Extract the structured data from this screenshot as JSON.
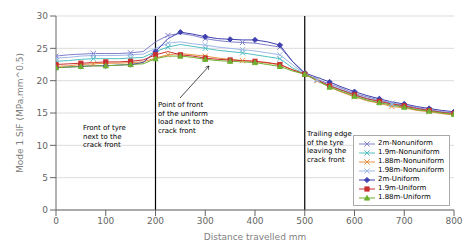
{
  "chart_data": {
    "type": "line",
    "xlabel": "Distance travelled mm",
    "ylabel": "Mode 1 SIF (MPa.mm^0.5)",
    "xlim": [
      0,
      800
    ],
    "ylim": [
      0,
      30
    ],
    "xticks": [
      0,
      100,
      200,
      300,
      400,
      500,
      600,
      700,
      800
    ],
    "yticks": [
      0,
      5,
      10,
      15,
      20,
      25,
      30
    ],
    "grid": true,
    "legend": "lower right",
    "vlines": [
      200,
      500
    ],
    "annotations": [
      "Point of front\nof the uniform\nload next to the\ncrack front",
      "Front of tyre\nnext to the\ncrack front",
      "Trailing edge\nof the tyre\nleaving the\ncrack front"
    ],
    "x": [
      0,
      25,
      50,
      75,
      100,
      125,
      150,
      175,
      200,
      225,
      250,
      275,
      300,
      325,
      350,
      375,
      400,
      425,
      450,
      475,
      500,
      525,
      550,
      575,
      600,
      625,
      650,
      675,
      700,
      725,
      750,
      775,
      800
    ],
    "series": [
      {
        "name": "2m-Nonuniform",
        "color": "#8080cc",
        "marker": "x",
        "values": [
          23.8,
          24.0,
          24.1,
          24.2,
          24.2,
          24.2,
          24.3,
          24.5,
          26.0,
          27.0,
          27.3,
          27.0,
          26.5,
          26.2,
          26.0,
          25.9,
          25.8,
          25.5,
          25.2,
          23.0,
          21.0,
          20.2,
          19.5,
          18.8,
          18.0,
          17.5,
          17.0,
          16.5,
          16.2,
          15.8,
          15.5,
          15.2,
          15.0
        ]
      },
      {
        "name": "1.9m-Nonuniform",
        "color": "#50c0c0",
        "marker": "x",
        "values": [
          23.0,
          23.1,
          23.3,
          23.4,
          23.4,
          23.4,
          23.5,
          23.6,
          24.5,
          25.2,
          25.6,
          25.3,
          25.0,
          24.7,
          24.5,
          24.3,
          24.0,
          23.7,
          23.4,
          22.0,
          21.0,
          20.1,
          19.2,
          18.5,
          17.8,
          17.2,
          16.8,
          16.3,
          16.0,
          15.5,
          15.3,
          15.0,
          14.8
        ]
      },
      {
        "name": "1.88m-Nonuniform",
        "color": "#e89040",
        "marker": "x",
        "values": [
          22.2,
          22.3,
          22.5,
          22.6,
          22.7,
          22.7,
          22.8,
          22.9,
          23.5,
          24.0,
          24.2,
          24.0,
          23.8,
          23.5,
          23.3,
          23.1,
          23.0,
          22.7,
          22.5,
          21.7,
          21.0,
          20.0,
          19.0,
          18.2,
          17.5,
          16.9,
          16.5,
          16.0,
          15.8,
          15.4,
          15.2,
          14.9,
          14.7
        ]
      },
      {
        "name": "1.98m-Nonuniform",
        "color": "#a0b8e8",
        "marker": "x",
        "values": [
          23.5,
          23.6,
          23.8,
          23.9,
          23.9,
          23.9,
          24.0,
          24.1,
          25.0,
          25.8,
          26.0,
          25.7,
          25.5,
          25.2,
          25.0,
          24.8,
          24.6,
          24.3,
          24.0,
          22.5,
          21.0,
          20.1,
          19.3,
          18.6,
          17.9,
          17.3,
          16.9,
          16.4,
          16.1,
          15.7,
          15.4,
          15.1,
          14.9
        ]
      },
      {
        "name": "2m-Uniform",
        "color": "#4040b0",
        "marker": "diamond",
        "values": [
          22.0,
          22.1,
          22.2,
          22.3,
          22.3,
          22.4,
          22.5,
          22.8,
          24.5,
          26.5,
          27.5,
          27.2,
          26.8,
          26.5,
          26.4,
          26.3,
          26.3,
          26.0,
          25.5,
          23.0,
          21.2,
          20.5,
          19.8,
          19.0,
          18.3,
          17.7,
          17.2,
          16.7,
          16.4,
          16.0,
          15.7,
          15.4,
          15.2
        ]
      },
      {
        "name": "1.9m-Uniform",
        "color": "#c83030",
        "marker": "square",
        "values": [
          22.5,
          22.6,
          22.7,
          22.8,
          22.9,
          22.9,
          23.0,
          23.2,
          24.0,
          24.5,
          24.0,
          23.8,
          23.5,
          23.3,
          23.2,
          23.1,
          23.0,
          22.8,
          22.5,
          21.7,
          21.0,
          20.1,
          19.2,
          18.5,
          17.8,
          17.2,
          16.8,
          16.4,
          16.1,
          15.7,
          15.4,
          15.1,
          14.9
        ]
      },
      {
        "name": "1.88m-Uniform",
        "color": "#70b030",
        "marker": "triangle",
        "values": [
          22.0,
          22.1,
          22.2,
          22.3,
          22.3,
          22.4,
          22.5,
          22.6,
          23.4,
          23.8,
          23.8,
          23.6,
          23.3,
          23.1,
          23.0,
          22.9,
          22.8,
          22.5,
          22.2,
          21.5,
          21.0,
          20.0,
          19.0,
          18.3,
          17.6,
          17.0,
          16.6,
          16.2,
          15.9,
          15.5,
          15.3,
          15.0,
          14.8
        ]
      }
    ]
  }
}
